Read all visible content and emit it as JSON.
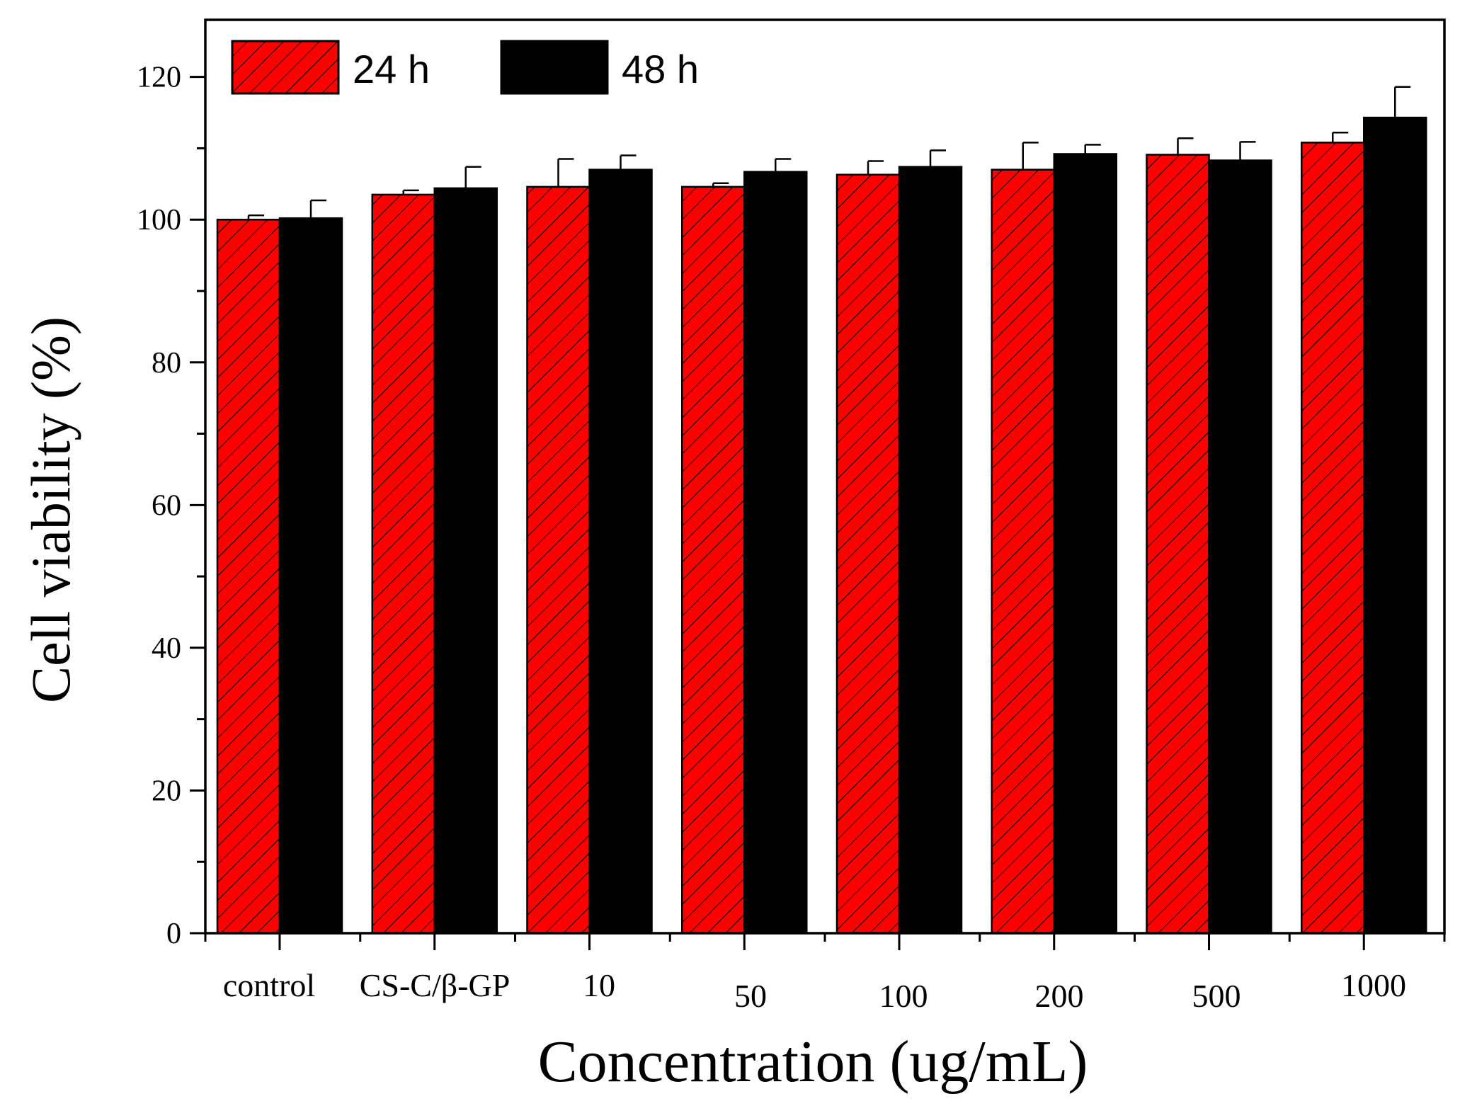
{
  "chart_data": {
    "type": "bar",
    "title": "",
    "xlabel": "Concentration (ug/mL)",
    "ylabel": "Cell viability (%)",
    "ylim": [
      0,
      128
    ],
    "yticks": [
      0,
      20,
      40,
      60,
      80,
      100,
      120
    ],
    "categories": [
      "control",
      "CS-C/β-GP",
      "10",
      "50",
      "100",
      "200",
      "500",
      "1000"
    ],
    "series": [
      {
        "name": "24 h",
        "color": "#ff0000",
        "pattern": "hatched",
        "values": [
          100.0,
          103.5,
          104.6,
          104.6,
          106.3,
          107.0,
          109.1,
          110.8
        ],
        "errors": [
          0.6,
          0.6,
          3.9,
          0.5,
          1.9,
          3.8,
          2.3,
          1.4
        ]
      },
      {
        "name": "48 h",
        "color": "#000000",
        "pattern": "solid",
        "values": [
          100.2,
          104.4,
          107.0,
          106.7,
          107.4,
          109.2,
          108.3,
          114.3
        ],
        "errors": [
          2.5,
          3.0,
          2.0,
          1.8,
          2.3,
          1.3,
          2.6,
          4.3
        ]
      }
    ],
    "legend_position": "top-left"
  }
}
